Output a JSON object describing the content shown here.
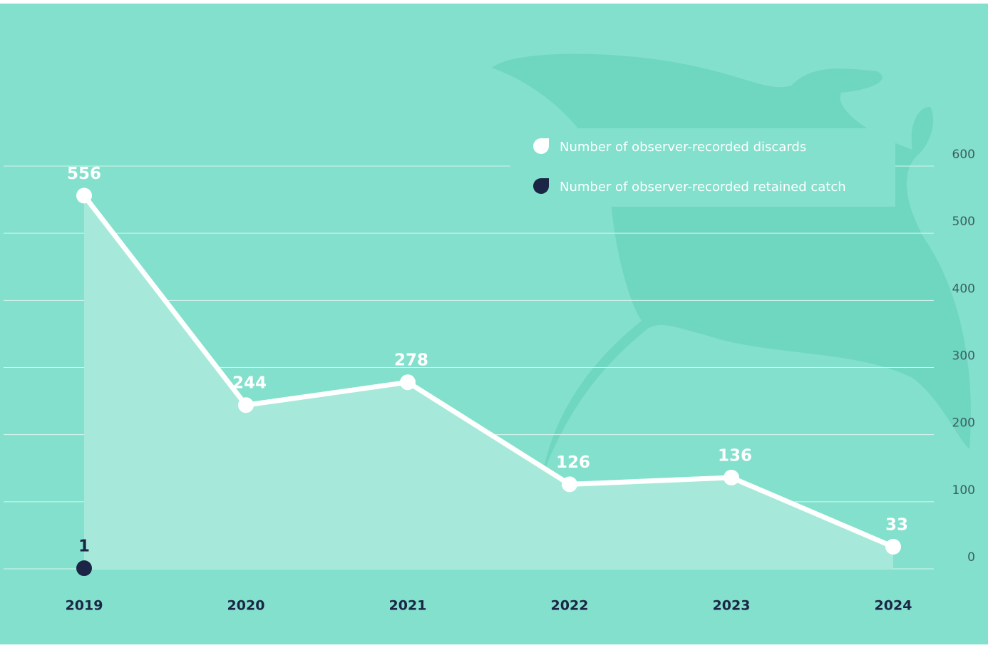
{
  "chart_data": {
    "type": "line",
    "categories": [
      "2019",
      "2020",
      "2021",
      "2022",
      "2023",
      "2024"
    ],
    "series": [
      {
        "name": "Number of observer-recorded discards",
        "color": "#ffffff",
        "values": [
          556,
          244,
          278,
          126,
          136,
          33
        ]
      },
      {
        "name": "Number of observer-recorded retained catch",
        "color": "#1b2545",
        "values": [
          1,
          null,
          null,
          null,
          null,
          null
        ]
      }
    ],
    "ylim": [
      0,
      600
    ],
    "yticks": [
      0,
      100,
      200,
      300,
      400,
      500,
      600
    ],
    "grid": true,
    "legend": "top-right"
  }
}
